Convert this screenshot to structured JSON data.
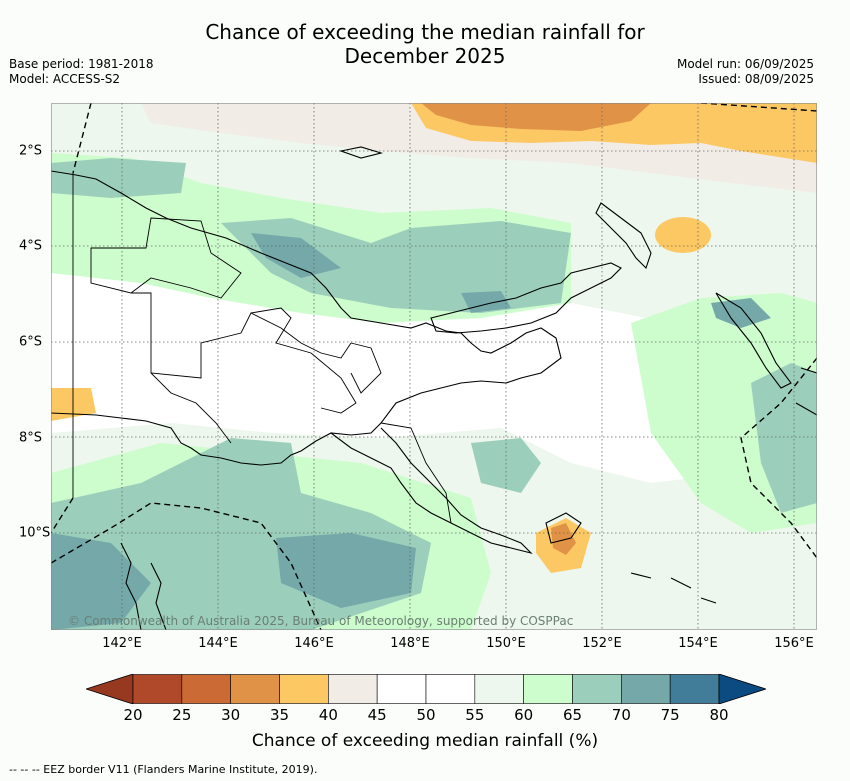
{
  "title_line1": "Chance of exceeding the median rainfall for",
  "title_line2": "December 2025",
  "meta_left": {
    "base_period": "Base period: 1981-2018",
    "model": "Model: ACCESS-S2"
  },
  "meta_right": {
    "model_run": "Model run: 06/09/2025",
    "issued": "Issued: 08/09/2025"
  },
  "copyright": "© Commonwealth of Australia 2025, Bureau of Meteorology, supported by COSPPac",
  "x_ticks": [
    "142°E",
    "144°E",
    "146°E",
    "148°E",
    "150°E",
    "152°E",
    "154°E",
    "156°E"
  ],
  "y_ticks": [
    "2°S",
    "4°S",
    "6°S",
    "8°S",
    "10°S"
  ],
  "colorbar": {
    "ticks": [
      "20",
      "25",
      "30",
      "35",
      "40",
      "45",
      "50",
      "55",
      "60",
      "65",
      "70",
      "75",
      "80"
    ],
    "colors": [
      "#b0482a",
      "#cc6a35",
      "#e09347",
      "#fcc864",
      "#f2ece6",
      "#ffffff",
      "#ffffff",
      "#edf7ed",
      "#cdfccd",
      "#9ccfbb",
      "#74a8a9",
      "#417c98"
    ],
    "under_color": "#973820",
    "over_color": "#0b4b82",
    "label": "Chance of exceeding median rainfall (%)"
  },
  "footnote": "-- -- -- EEZ border V11 (Flanders Marine Institute, 2019).",
  "palette": {
    "c35": "#fcc864",
    "c30": "#e09347",
    "c40": "#f2ece6",
    "c55": "#edf7ed",
    "c60": "#cdfccd",
    "c65": "#9ccfbb",
    "c70": "#74a8a9",
    "c75": "#417c98"
  }
}
